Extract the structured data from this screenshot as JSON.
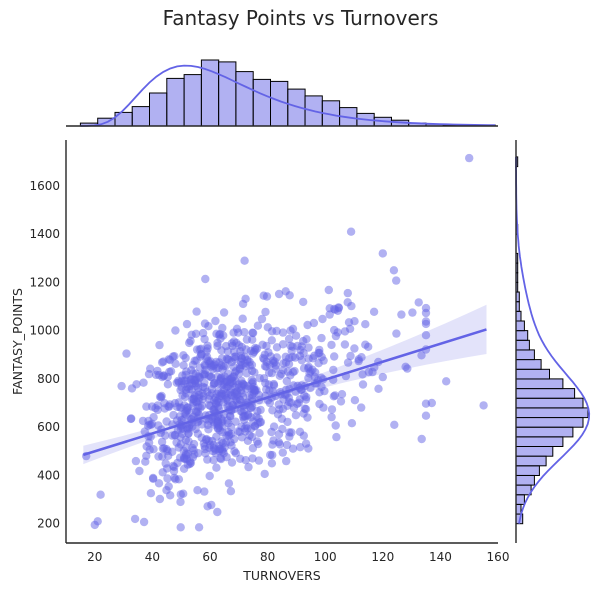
{
  "chart_data": {
    "type": "scatter",
    "title": "Fantasy Points vs Turnovers",
    "xlabel": "TURNOVERS",
    "ylabel": "FANTASY_POINTS",
    "xlim": [
      10,
      160
    ],
    "ylim": [
      120,
      1790
    ],
    "xticks": [
      20,
      40,
      60,
      80,
      100,
      120,
      140,
      160
    ],
    "yticks": [
      200,
      400,
      600,
      800,
      1000,
      1200,
      1400,
      1600
    ],
    "grid": false,
    "color": "#6363e6",
    "notable_points": [
      {
        "x": 150,
        "y": 1715
      },
      {
        "x": 155,
        "y": 690
      },
      {
        "x": 109,
        "y": 1410
      },
      {
        "x": 120,
        "y": 1320
      },
      {
        "x": 72,
        "y": 1290
      },
      {
        "x": 17,
        "y": 480
      },
      {
        "x": 20,
        "y": 195
      },
      {
        "x": 21,
        "y": 210
      },
      {
        "x": 34,
        "y": 220
      },
      {
        "x": 22,
        "y": 320
      },
      {
        "x": 31,
        "y": 905
      },
      {
        "x": 137,
        "y": 700
      },
      {
        "x": 142,
        "y": 790
      },
      {
        "x": 124,
        "y": 610
      }
    ],
    "regression": {
      "x": [
        16,
        156
      ],
      "y": [
        485,
        1005
      ]
    },
    "marginal_x_hist": {
      "bin_edges": [
        15,
        21,
        27,
        33,
        39,
        45,
        51,
        57,
        63,
        69,
        75,
        81,
        87,
        93,
        99,
        105,
        111,
        117,
        123,
        129,
        135,
        141,
        147,
        153,
        159
      ],
      "counts": [
        3,
        8,
        14,
        20,
        34,
        49,
        53,
        68,
        66,
        56,
        48,
        46,
        38,
        31,
        26,
        19,
        13,
        9,
        6,
        3,
        2,
        1,
        1,
        1
      ]
    },
    "marginal_y_hist": {
      "bin_edges": [
        200,
        240,
        280,
        320,
        360,
        400,
        440,
        480,
        520,
        560,
        600,
        640,
        680,
        720,
        760,
        800,
        840,
        880,
        920,
        960,
        1000,
        1040,
        1080,
        1120,
        1160,
        1200,
        1240,
        1280,
        1320,
        1360,
        1400,
        1440,
        1480,
        1520,
        1560,
        1600,
        1640,
        1680,
        1720
      ],
      "counts": [
        4,
        3,
        5,
        9,
        11,
        14,
        18,
        22,
        28,
        34,
        40,
        43,
        40,
        35,
        28,
        20,
        15,
        11,
        8,
        7,
        5,
        3,
        2,
        2,
        1,
        1,
        1,
        1,
        0,
        0,
        1,
        0,
        0,
        0,
        0,
        0,
        0,
        1
      ]
    }
  }
}
